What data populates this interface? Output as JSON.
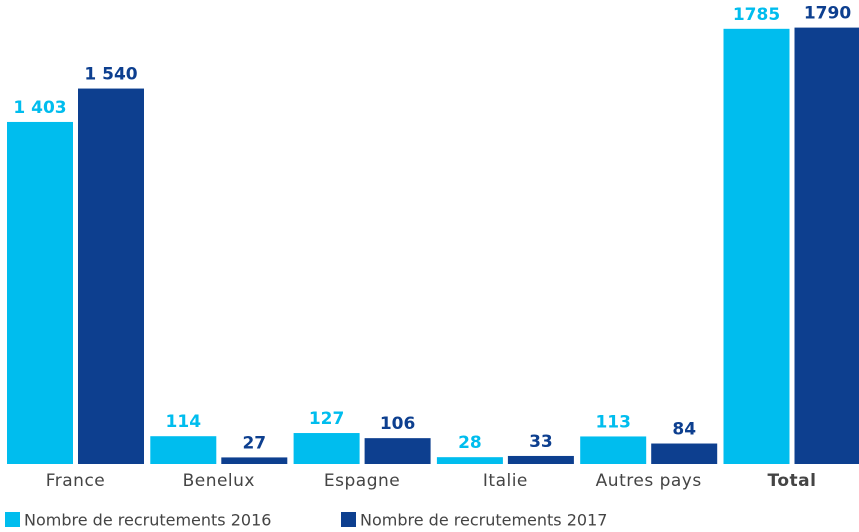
{
  "chart_data": {
    "type": "bar",
    "categories": [
      "France",
      "Benelux",
      "Espagne",
      "Italie",
      "Autres pays",
      "Total"
    ],
    "series": [
      {
        "name": "Nombre de recrutements 2016",
        "color": "#00bdee",
        "values": [
          1403,
          114,
          127,
          28,
          113,
          1785
        ],
        "value_labels": [
          "1 403",
          "114",
          "127",
          "28",
          "113",
          "1785"
        ]
      },
      {
        "name": "Nombre de recrutements 2017",
        "color": "#0d3f8f",
        "values": [
          1540,
          27,
          106,
          33,
          84,
          1790
        ],
        "value_labels": [
          "1 540",
          "27",
          "106",
          "33",
          "84",
          "1790"
        ]
      }
    ]
  }
}
